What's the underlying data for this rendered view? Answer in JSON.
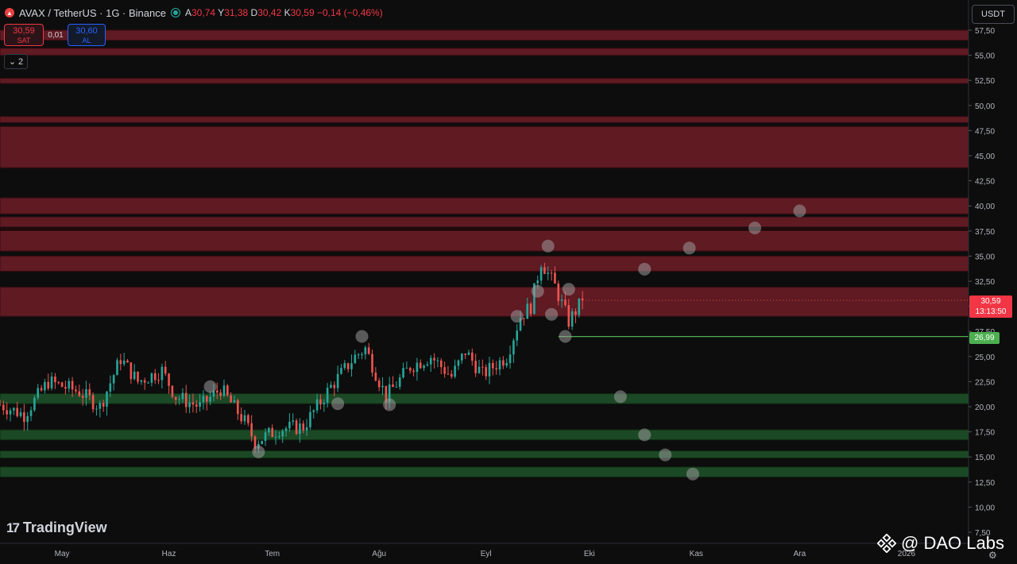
{
  "header": {
    "symbol_title": "AVAX / TetherUS · 1G · Binance",
    "ohlc": [
      {
        "key": "A",
        "value": "30,74"
      },
      {
        "key": "Y",
        "value": "31,38"
      },
      {
        "key": "D",
        "value": "30,42"
      },
      {
        "key": "K",
        "value": "30,59"
      }
    ],
    "change": "−0,14 (−0,46%)",
    "currency": "USDT"
  },
  "trade": {
    "sell_price": "30,59",
    "sell_label": "SAT",
    "spread": "0,01",
    "buy_price": "30,60",
    "buy_label": "AL"
  },
  "indicators_count": "2",
  "branding": {
    "logo_text": "TradingView",
    "watermark": "@ DAO Labs"
  },
  "price_labels": {
    "last_price": "30,59",
    "countdown": "13:13:50",
    "level_label": "26,99"
  },
  "colors": {
    "background": "#0d0d0d",
    "up": "#26a69a",
    "down": "#ef5350",
    "resistance_zone": "#6b1c26",
    "support_zone": "#1e4d27",
    "projection_dot": "#9a9a9a",
    "level_line": "#4caf50"
  },
  "chart_data": {
    "type": "candlestick",
    "y_axis": {
      "min": 7.5,
      "max": 57.5,
      "ticks": [
        "57,50",
        "55,00",
        "52,50",
        "50,00",
        "47,50",
        "45,00",
        "42,50",
        "40,00",
        "37,50",
        "35,00",
        "32,50",
        "30,00",
        "27,50",
        "25,00",
        "22,50",
        "20,00",
        "17,50",
        "15,00",
        "12,50",
        "10,00",
        "7,50"
      ],
      "tick_values": [
        57.5,
        55,
        52.5,
        50,
        47.5,
        45,
        42.5,
        40,
        37.5,
        35,
        32.5,
        30,
        27.5,
        25,
        22.5,
        20,
        17.5,
        15,
        12.5,
        10,
        7.5
      ]
    },
    "x_axis": {
      "labels": [
        "May",
        "Haz",
        "Tem",
        "Ağu",
        "Eyl",
        "Eki",
        "Kas",
        "Ara",
        "2026"
      ],
      "label_dates": [
        "2025-05-01",
        "2025-06-01",
        "2025-07-01",
        "2025-08-01",
        "2025-09-01",
        "2025-10-01",
        "2025-11-01",
        "2025-12-01",
        "2026-01-01"
      ],
      "start_date": "2025-04-13",
      "end_date": "2026-01-19"
    },
    "resistance_zones": [
      [
        56.5,
        57.5
      ],
      [
        55.0,
        55.7
      ],
      [
        52.2,
        52.7
      ],
      [
        48.3,
        48.9
      ],
      [
        43.8,
        47.9
      ],
      [
        39.2,
        40.8
      ],
      [
        37.9,
        38.9
      ],
      [
        35.5,
        37.7
      ],
      [
        33.5,
        35.0
      ],
      [
        29.0,
        31.9
      ]
    ],
    "support_zones": [
      [
        20.3,
        21.3
      ],
      [
        16.7,
        17.7
      ],
      [
        14.9,
        15.6
      ],
      [
        13.0,
        14.0
      ]
    ],
    "horizontal_lines": [
      {
        "value": 37.6,
        "from_date": "2025-04-13"
      }
    ],
    "level_ray": {
      "value": 26.99,
      "from_date": "2025-09-22"
    },
    "last_price": 30.59,
    "anchors": [
      {
        "date": "2025-04-13",
        "close": 20.2
      },
      {
        "date": "2025-04-20",
        "close": 19.2
      },
      {
        "date": "2025-04-27",
        "close": 22.5
      },
      {
        "date": "2025-05-06",
        "close": 21.5
      },
      {
        "date": "2025-05-12",
        "close": 20.0
      },
      {
        "date": "2025-05-18",
        "close": 24.8
      },
      {
        "date": "2025-05-23",
        "close": 22.5
      },
      {
        "date": "2025-05-30",
        "close": 23.6
      },
      {
        "date": "2025-06-03",
        "close": 21.0
      },
      {
        "date": "2025-06-10",
        "close": 20.0
      },
      {
        "date": "2025-06-16",
        "close": 21.8
      },
      {
        "date": "2025-06-23",
        "close": 18.5
      },
      {
        "date": "2025-06-26",
        "close": 16.5
      },
      {
        "date": "2025-07-03",
        "close": 17.8
      },
      {
        "date": "2025-07-10",
        "close": 18.0
      },
      {
        "date": "2025-07-18",
        "close": 22.0
      },
      {
        "date": "2025-07-25",
        "close": 25.0
      },
      {
        "date": "2025-07-28",
        "close": 25.8
      },
      {
        "date": "2025-08-03",
        "close": 21.0
      },
      {
        "date": "2025-08-10",
        "close": 24.0
      },
      {
        "date": "2025-08-16",
        "close": 25.0
      },
      {
        "date": "2025-08-22",
        "close": 23.0
      },
      {
        "date": "2025-08-26",
        "close": 25.5
      },
      {
        "date": "2025-08-31",
        "close": 23.2
      },
      {
        "date": "2025-09-07",
        "close": 25.0
      },
      {
        "date": "2025-09-11",
        "close": 29.0
      },
      {
        "date": "2025-09-14",
        "close": 30.0
      },
      {
        "date": "2025-09-17",
        "close": 34.5
      },
      {
        "date": "2025-09-21",
        "close": 32.0
      },
      {
        "date": "2025-09-25",
        "close": 28.5
      },
      {
        "date": "2025-09-29",
        "close": 30.59
      }
    ],
    "projection_points": [
      {
        "date": "2025-06-27",
        "value": 15.5
      },
      {
        "date": "2025-06-13",
        "value": 22.0
      },
      {
        "date": "2025-07-20",
        "value": 20.3
      },
      {
        "date": "2025-07-27",
        "value": 27.0
      },
      {
        "date": "2025-08-04",
        "value": 20.2
      },
      {
        "date": "2025-09-10",
        "value": 29.0
      },
      {
        "date": "2025-09-16",
        "value": 31.5
      },
      {
        "date": "2025-09-19",
        "value": 36.0
      },
      {
        "date": "2025-09-20",
        "value": 29.2
      },
      {
        "date": "2025-09-24",
        "value": 27.0
      },
      {
        "date": "2025-09-25",
        "value": 31.7
      },
      {
        "date": "2025-10-10",
        "value": 21.0
      },
      {
        "date": "2025-10-17",
        "value": 33.7
      },
      {
        "date": "2025-10-17",
        "value": 17.2
      },
      {
        "date": "2025-10-23",
        "value": 15.2
      },
      {
        "date": "2025-10-30",
        "value": 35.8
      },
      {
        "date": "2025-10-31",
        "value": 13.3
      },
      {
        "date": "2025-11-18",
        "value": 37.8
      },
      {
        "date": "2025-12-01",
        "value": 39.5
      }
    ]
  }
}
